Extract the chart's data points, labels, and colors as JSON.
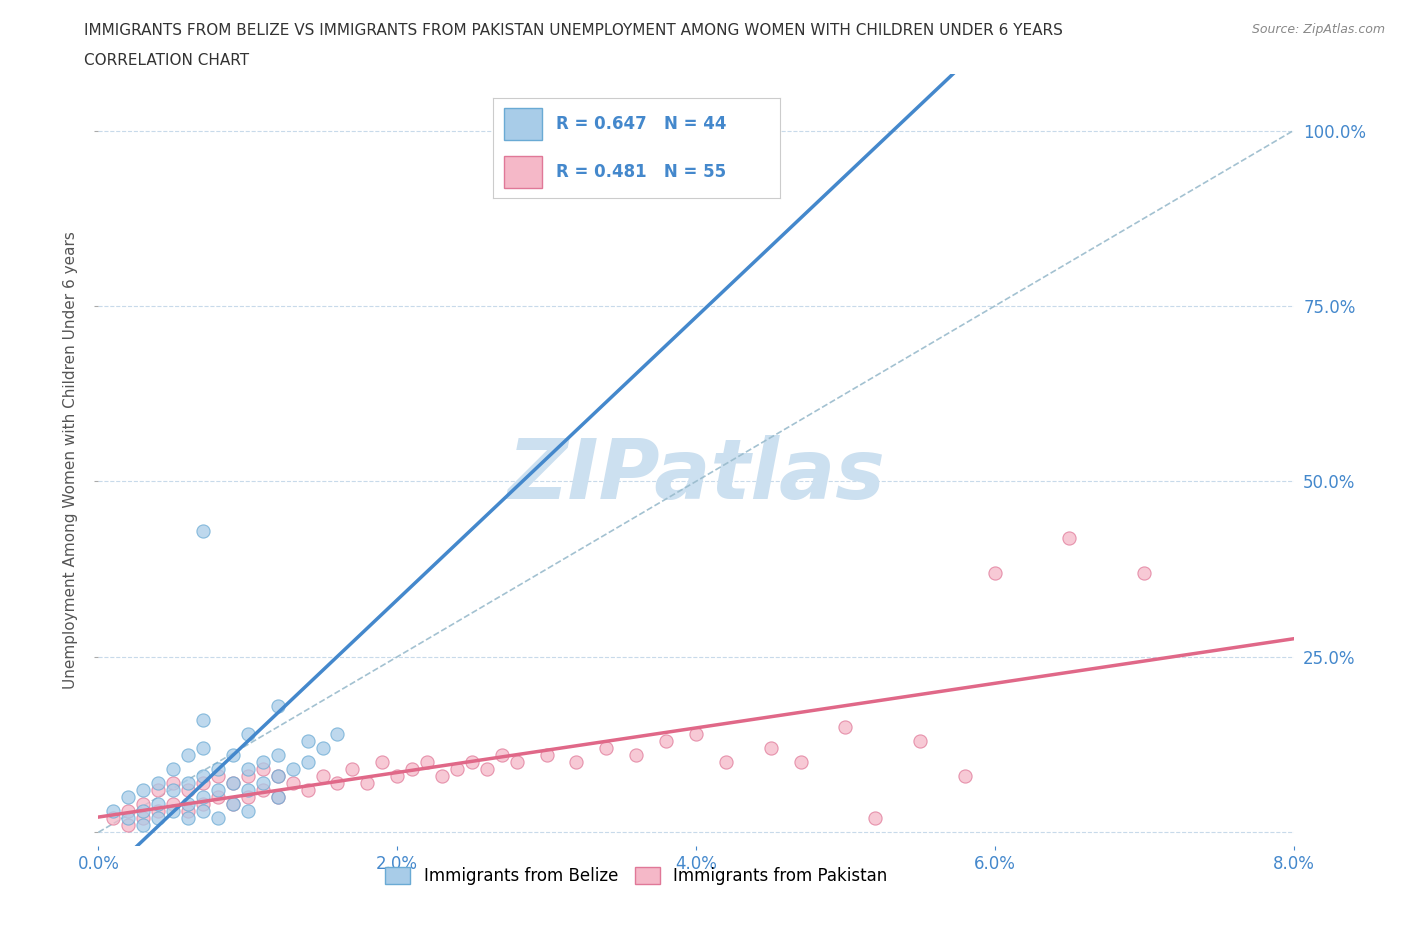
{
  "title_line1": "IMMIGRANTS FROM BELIZE VS IMMIGRANTS FROM PAKISTAN UNEMPLOYMENT AMONG WOMEN WITH CHILDREN UNDER 6 YEARS",
  "title_line2": "CORRELATION CHART",
  "source": "Source: ZipAtlas.com",
  "ylabel": "Unemployment Among Women with Children Under 6 years",
  "xlim": [
    0.0,
    0.08
  ],
  "ylim": [
    -0.02,
    1.08
  ],
  "xticks": [
    0.0,
    0.02,
    0.04,
    0.06,
    0.08
  ],
  "xtick_labels": [
    "0.0%",
    "2.0%",
    "4.0%",
    "6.0%",
    "8.0%"
  ],
  "yticks": [
    0.0,
    0.25,
    0.5,
    0.75,
    1.0
  ],
  "ytick_labels": [
    "",
    "25.0%",
    "50.0%",
    "75.0%",
    "100.0%"
  ],
  "grid_color": "#c8daea",
  "belize_color": "#a8cce8",
  "belize_edge_color": "#6aaad4",
  "pakistan_color": "#f5b8c8",
  "pakistan_edge_color": "#e07898",
  "belize_R": 0.647,
  "belize_N": 44,
  "pakistan_R": 0.481,
  "pakistan_N": 55,
  "belize_line_color": "#4488cc",
  "pakistan_line_color": "#e06888",
  "ref_line_color": "#99bbcc",
  "watermark": "ZIPatlas",
  "watermark_color": "#cce0f0",
  "legend_R_color": "#4488cc",
  "belize_x": [
    0.001,
    0.002,
    0.002,
    0.003,
    0.003,
    0.003,
    0.004,
    0.004,
    0.004,
    0.005,
    0.005,
    0.005,
    0.006,
    0.006,
    0.006,
    0.006,
    0.007,
    0.007,
    0.007,
    0.007,
    0.007,
    0.008,
    0.008,
    0.008,
    0.009,
    0.009,
    0.009,
    0.01,
    0.01,
    0.01,
    0.01,
    0.011,
    0.011,
    0.012,
    0.012,
    0.012,
    0.012,
    0.013,
    0.014,
    0.014,
    0.015,
    0.016,
    0.04,
    0.007
  ],
  "belize_y": [
    0.03,
    0.02,
    0.05,
    0.03,
    0.06,
    0.01,
    0.04,
    0.07,
    0.02,
    0.03,
    0.06,
    0.09,
    0.04,
    0.07,
    0.11,
    0.02,
    0.05,
    0.08,
    0.12,
    0.03,
    0.16,
    0.06,
    0.09,
    0.02,
    0.07,
    0.04,
    0.11,
    0.06,
    0.09,
    0.03,
    0.14,
    0.07,
    0.1,
    0.08,
    0.11,
    0.05,
    0.18,
    0.09,
    0.1,
    0.13,
    0.12,
    0.14,
    1.0,
    0.43
  ],
  "pakistan_x": [
    0.001,
    0.002,
    0.002,
    0.003,
    0.003,
    0.004,
    0.004,
    0.005,
    0.005,
    0.006,
    0.006,
    0.007,
    0.007,
    0.008,
    0.008,
    0.009,
    0.009,
    0.01,
    0.01,
    0.011,
    0.011,
    0.012,
    0.012,
    0.013,
    0.014,
    0.015,
    0.016,
    0.017,
    0.018,
    0.019,
    0.02,
    0.021,
    0.022,
    0.023,
    0.024,
    0.025,
    0.026,
    0.027,
    0.028,
    0.03,
    0.032,
    0.034,
    0.036,
    0.038,
    0.04,
    0.042,
    0.045,
    0.05,
    0.055,
    0.06,
    0.065,
    0.07,
    0.047,
    0.052,
    0.058
  ],
  "pakistan_y": [
    0.02,
    0.03,
    0.01,
    0.04,
    0.02,
    0.03,
    0.06,
    0.04,
    0.07,
    0.03,
    0.06,
    0.04,
    0.07,
    0.05,
    0.08,
    0.04,
    0.07,
    0.05,
    0.08,
    0.06,
    0.09,
    0.05,
    0.08,
    0.07,
    0.06,
    0.08,
    0.07,
    0.09,
    0.07,
    0.1,
    0.08,
    0.09,
    0.1,
    0.08,
    0.09,
    0.1,
    0.09,
    0.11,
    0.1,
    0.11,
    0.1,
    0.12,
    0.11,
    0.13,
    0.14,
    0.1,
    0.12,
    0.15,
    0.13,
    0.37,
    0.42,
    0.37,
    0.1,
    0.02,
    0.08
  ]
}
